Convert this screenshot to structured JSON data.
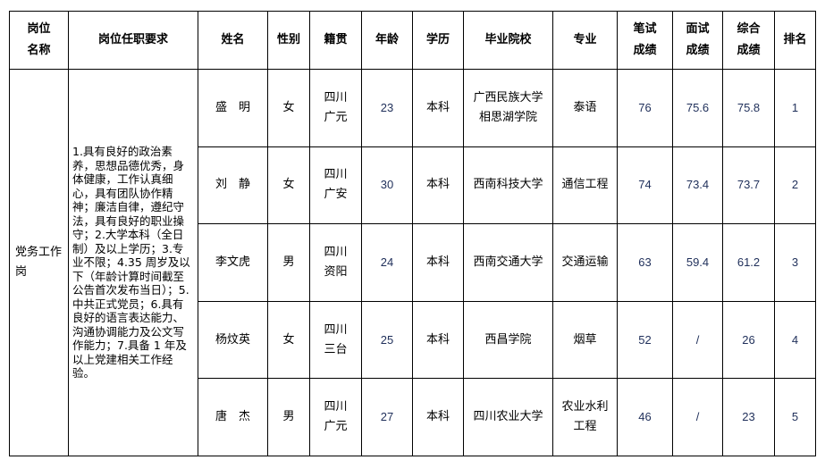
{
  "headers": [
    "岗位\n名称",
    "岗位任职要求",
    "姓名",
    "性别",
    "籍贯",
    "年龄",
    "学历",
    "毕业院校",
    "专业",
    "笔试\n成绩",
    "面试\n成绩",
    "综合\n成绩",
    "排名"
  ],
  "position": "党务工作岗",
  "requirements": "1.具有良好的政治素养，思想品德优秀，身体健康，工作认真细心，具有团队协作精神；廉洁自律，遵纪守法，具有良好的职业操守；2.大学本科（全日制）及以上学历；3.专业不限；4.35 周岁及以下（年龄计算时间截至公告首次发布当日）；5.中共正式党员；6.具有良好的语言表达能力、沟通协调能力及公文写作能力；7.具备 1 年及以上党建相关工作经验。",
  "rows": [
    {
      "name": "盛　明",
      "gender": "女",
      "origin": "四川\n广元",
      "age": "23",
      "education": "本科",
      "school": "广西民族大学\n相思湖学院",
      "major": "泰语",
      "written": "76",
      "interview": "75.6",
      "total": "75.8",
      "rank": "1"
    },
    {
      "name": "刘　静",
      "gender": "女",
      "origin": "四川\n广安",
      "age": "30",
      "education": "本科",
      "school": "西南科技大学",
      "major": "通信工程",
      "written": "74",
      "interview": "73.4",
      "total": "73.7",
      "rank": "2"
    },
    {
      "name": "李文虎",
      "gender": "男",
      "origin": "四川\n资阳",
      "age": "24",
      "education": "本科",
      "school": "西南交通大学",
      "major": "交通运输",
      "written": "63",
      "interview": "59.4",
      "total": "61.2",
      "rank": "3"
    },
    {
      "name": "杨炆英",
      "gender": "女",
      "origin": "四川\n三台",
      "age": "25",
      "education": "本科",
      "school": "西昌学院",
      "major": "烟草",
      "written": "52",
      "interview": "/",
      "total": "26",
      "rank": "4"
    },
    {
      "name": "唐　杰",
      "gender": "男",
      "origin": "四川\n广元",
      "age": "27",
      "education": "本科",
      "school": "四川农业大学",
      "major": "农业水利\n工程",
      "written": "46",
      "interview": "/",
      "total": "23",
      "rank": "5"
    }
  ]
}
